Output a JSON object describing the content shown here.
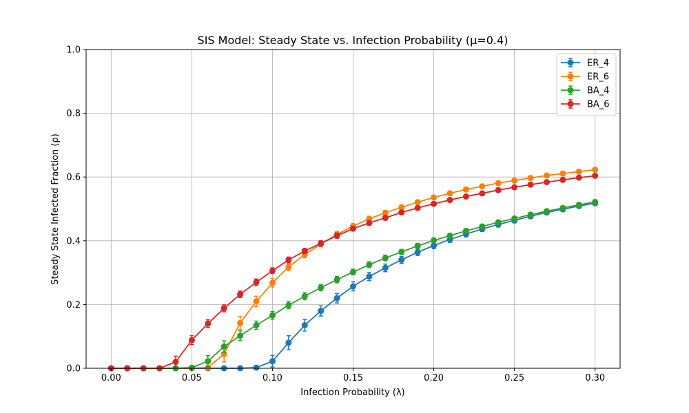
{
  "chart_data": {
    "type": "line",
    "title": "SIS Model: Steady State vs. Infection Probability (μ=0.4)",
    "xlabel": "Infection Probability (λ)",
    "ylabel": "Steady State Infected Fraction (ρ)",
    "xlim": [
      -0.0155,
      0.3155
    ],
    "ylim": [
      0,
      1.0
    ],
    "xticks": [
      "0.00",
      "0.05",
      "0.10",
      "0.15",
      "0.20",
      "0.25",
      "0.30"
    ],
    "yticks": [
      "0.0",
      "0.2",
      "0.4",
      "0.6",
      "0.8",
      "1.0"
    ],
    "grid": true,
    "legend_position": "top-right",
    "x": [
      0.0,
      0.01,
      0.02,
      0.03,
      0.04,
      0.05,
      0.06,
      0.07,
      0.08,
      0.09,
      0.1,
      0.11,
      0.12,
      0.13,
      0.14,
      0.15,
      0.16,
      0.17,
      0.18,
      0.19,
      0.2,
      0.21,
      0.22,
      0.23,
      0.24,
      0.25,
      0.26,
      0.27,
      0.28,
      0.29,
      0.3
    ],
    "series": [
      {
        "name": "ER_4",
        "color": "#1f77b4",
        "values": [
          0,
          0,
          0,
          0,
          0,
          0,
          0,
          0,
          0,
          0.002,
          0.022,
          0.08,
          0.135,
          0.18,
          0.22,
          0.257,
          0.288,
          0.315,
          0.34,
          0.364,
          0.385,
          0.404,
          0.421,
          0.437,
          0.451,
          0.464,
          0.477,
          0.489,
          0.499,
          0.509,
          0.518
        ],
        "errors": [
          0,
          0,
          0,
          0,
          0,
          0,
          0,
          0,
          0,
          0.004,
          0.018,
          0.022,
          0.018,
          0.016,
          0.015,
          0.014,
          0.013,
          0.012,
          0.011,
          0.01,
          0.01,
          0.009,
          0.009,
          0.008,
          0.008,
          0.008,
          0.007,
          0.007,
          0.007,
          0.006,
          0.006
        ]
      },
      {
        "name": "ER_6",
        "color": "#ff7f0e",
        "values": [
          0,
          0,
          0,
          0,
          0,
          0,
          0.002,
          0.045,
          0.142,
          0.21,
          0.268,
          0.318,
          0.357,
          0.39,
          0.42,
          0.446,
          0.469,
          0.488,
          0.505,
          0.521,
          0.536,
          0.549,
          0.561,
          0.571,
          0.581,
          0.589,
          0.597,
          0.605,
          0.611,
          0.617,
          0.623
        ],
        "errors": [
          0,
          0,
          0,
          0,
          0,
          0,
          0.004,
          0.025,
          0.02,
          0.016,
          0.013,
          0.011,
          0.01,
          0.009,
          0.009,
          0.008,
          0.008,
          0.007,
          0.007,
          0.007,
          0.006,
          0.006,
          0.006,
          0.006,
          0.005,
          0.005,
          0.005,
          0.005,
          0.005,
          0.005,
          0.005
        ]
      },
      {
        "name": "BA_4",
        "color": "#2ca02c",
        "values": [
          0,
          0,
          0,
          0,
          0,
          0.002,
          0.022,
          0.068,
          0.102,
          0.135,
          0.166,
          0.198,
          0.226,
          0.253,
          0.278,
          0.302,
          0.325,
          0.346,
          0.365,
          0.384,
          0.401,
          0.416,
          0.431,
          0.445,
          0.458,
          0.47,
          0.482,
          0.493,
          0.503,
          0.513,
          0.522
        ],
        "errors": [
          0,
          0,
          0,
          0,
          0,
          0.003,
          0.018,
          0.018,
          0.015,
          0.013,
          0.012,
          0.011,
          0.011,
          0.01,
          0.01,
          0.009,
          0.009,
          0.009,
          0.008,
          0.008,
          0.008,
          0.007,
          0.007,
          0.007,
          0.007,
          0.006,
          0.006,
          0.006,
          0.006,
          0.006,
          0.006
        ]
      },
      {
        "name": "BA_6",
        "color": "#d62728",
        "values": [
          0,
          0,
          0,
          0,
          0.02,
          0.088,
          0.14,
          0.188,
          0.232,
          0.27,
          0.306,
          0.34,
          0.368,
          0.392,
          0.416,
          0.438,
          0.456,
          0.472,
          0.489,
          0.503,
          0.516,
          0.528,
          0.539,
          0.549,
          0.559,
          0.568,
          0.576,
          0.584,
          0.591,
          0.598,
          0.604
        ],
        "errors": [
          0,
          0,
          0,
          0,
          0.018,
          0.014,
          0.012,
          0.011,
          0.01,
          0.01,
          0.009,
          0.009,
          0.008,
          0.008,
          0.008,
          0.007,
          0.007,
          0.007,
          0.007,
          0.006,
          0.006,
          0.006,
          0.006,
          0.006,
          0.006,
          0.005,
          0.005,
          0.005,
          0.005,
          0.005,
          0.005
        ]
      }
    ]
  }
}
